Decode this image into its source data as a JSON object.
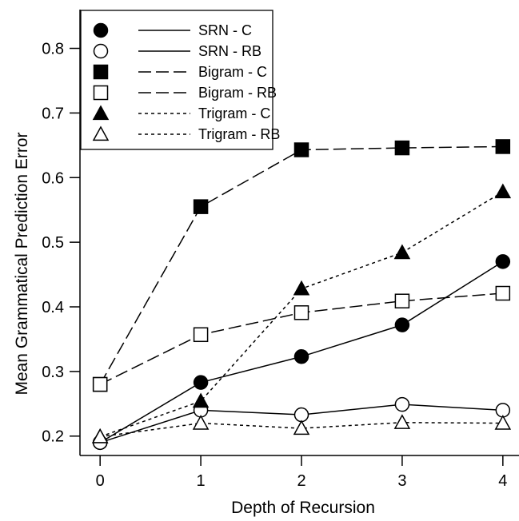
{
  "chart_data": {
    "type": "line",
    "title": "",
    "xlabel": "Depth of Recursion",
    "ylabel": "Mean Grammatical Prediction Error",
    "x": [
      0,
      1,
      2,
      3,
      4
    ],
    "xticks": [
      "0",
      "1",
      "2",
      "3",
      "4"
    ],
    "xlim": [
      -0.2,
      4.2
    ],
    "yticks": [
      0.2,
      0.3,
      0.4,
      0.5,
      0.6,
      0.7,
      0.8
    ],
    "ytick_labels": [
      "0.2",
      "0.3",
      "0.4",
      "0.5",
      "0.6",
      "0.7",
      "0.8"
    ],
    "ylim": [
      0.17,
      0.86
    ],
    "grid": false,
    "legend_position": "top-left",
    "series": [
      {
        "name": "SRN - C",
        "values": [
          0.19,
          0.283,
          0.323,
          0.372,
          0.47
        ],
        "marker": "circle",
        "fill": "filled",
        "line": "solid"
      },
      {
        "name": "SRN - RB",
        "values": [
          0.19,
          0.24,
          0.233,
          0.249,
          0.24
        ],
        "marker": "circle",
        "fill": "open",
        "line": "solid"
      },
      {
        "name": "Bigram - C",
        "values": [
          0.28,
          0.555,
          0.643,
          0.646,
          0.648
        ],
        "marker": "square",
        "fill": "filled",
        "line": "long-dash"
      },
      {
        "name": "Bigram - RB",
        "values": [
          0.28,
          0.357,
          0.391,
          0.409,
          0.421
        ],
        "marker": "square",
        "fill": "open",
        "line": "long-dash"
      },
      {
        "name": "Trigram - C",
        "values": [
          0.199,
          0.254,
          0.428,
          0.484,
          0.578
        ],
        "marker": "triangle",
        "fill": "filled",
        "line": "dotted"
      },
      {
        "name": "Trigram - RB",
        "values": [
          0.199,
          0.22,
          0.212,
          0.221,
          0.22
        ],
        "marker": "triangle",
        "fill": "open",
        "line": "dotted"
      }
    ]
  }
}
